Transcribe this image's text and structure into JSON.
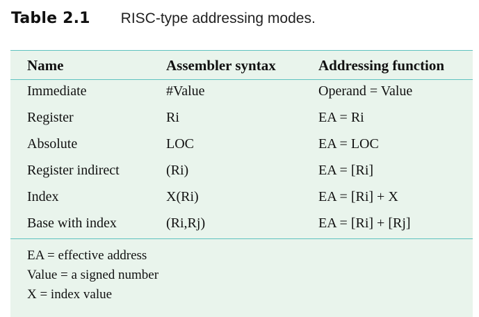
{
  "title": {
    "number": "Table 2.1",
    "caption": "RISC-type addressing modes."
  },
  "columns": [
    "Name",
    "Assembler syntax",
    "Addressing function"
  ],
  "rows": [
    {
      "name": "Immediate",
      "syntax": "#Value",
      "function": "Operand = Value"
    },
    {
      "name": "Register",
      "syntax": "Ri",
      "function": "EA = Ri"
    },
    {
      "name": "Absolute",
      "syntax": "LOC",
      "function": "EA = LOC"
    },
    {
      "name": "Register indirect",
      "syntax": "(Ri)",
      "function": "EA = [Ri]"
    },
    {
      "name": "Index",
      "syntax": "X(Ri)",
      "function": "EA = [Ri] + X"
    },
    {
      "name": "Base with index",
      "syntax": "(Ri,Rj)",
      "function": "EA = [Ri] + [Rj]"
    }
  ],
  "footnotes": [
    "EA = effective address",
    "Value = a signed number",
    "X = index value"
  ],
  "colors": {
    "panel": "#e9f4ec",
    "rule": "#5ec2bf"
  }
}
